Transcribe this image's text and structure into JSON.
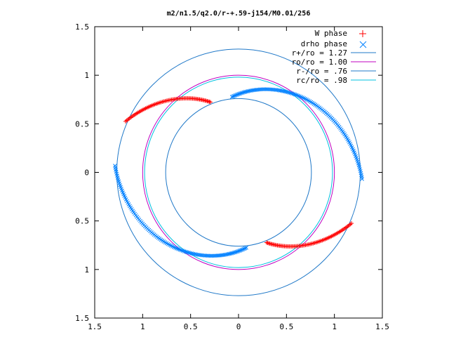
{
  "chart_data": {
    "type": "scatter",
    "title": "m2/n1.5/q2.0/r-+.59-j154/M0.01/256",
    "xlabel": "",
    "ylabel": "",
    "xlim": [
      -1.5,
      1.5
    ],
    "ylim": [
      -1.5,
      1.5
    ],
    "x_ticks": [
      -1.5,
      -1,
      -0.5,
      0,
      0.5,
      1,
      1.5
    ],
    "y_ticks": [
      -1.5,
      -1,
      -0.5,
      0,
      0.5,
      1,
      1.5
    ],
    "x_tick_labels": [
      "1.5",
      "1",
      "0.5",
      "0",
      "0.5",
      "1",
      "1.5"
    ],
    "y_tick_labels": [
      "1.5",
      "1",
      "0.5",
      "0",
      "0.5",
      "1",
      "1.5"
    ],
    "grid": false,
    "legend_position": "top-right",
    "legend": [
      {
        "label": "W phase",
        "marker": "plus",
        "color": "#ff0000"
      },
      {
        "label": "drho phase",
        "marker": "cross",
        "color": "#0080ff"
      },
      {
        "label": "r+/ro = 1.27",
        "marker": "line",
        "color": "#1f78c8"
      },
      {
        "label": "ro/ro = 1.00",
        "marker": "line",
        "color": "#c000c0"
      },
      {
        "label": "r-/ro = .76",
        "marker": "line",
        "color": "#1f78c8"
      },
      {
        "label": "rc/ro = .98",
        "marker": "line",
        "color": "#00c0e0"
      }
    ],
    "circles": [
      {
        "name": "r+/ro = 1.27",
        "r": 1.27,
        "color": "#1f78c8"
      },
      {
        "name": "ro/ro = 1.00",
        "r": 1.0,
        "color": "#c000c0"
      },
      {
        "name": "r-/ro = .76",
        "r": 0.76,
        "color": "#1f78c8"
      },
      {
        "name": "rc/ro = .98",
        "r": 0.98,
        "color": "#00c0e0"
      }
    ],
    "series": [
      {
        "name": "W phase",
        "marker": "plus",
        "color": "#ff0000",
        "arcs": [
          {
            "r_start": 1.29,
            "r_end": 0.78,
            "theta_start_deg": 156,
            "theta_end_deg": 112,
            "n": 70
          },
          {
            "r_start": 0.78,
            "r_end": 1.29,
            "theta_start_deg": 292,
            "theta_end_deg": 336,
            "n": 70
          }
        ]
      },
      {
        "name": "drho phase",
        "marker": "cross",
        "color": "#0080ff",
        "arcs": [
          {
            "r_start": 0.78,
            "r_end": 1.29,
            "theta_start_deg": 95,
            "theta_end_deg": -3,
            "n": 110
          },
          {
            "r_start": 1.29,
            "r_end": 0.78,
            "theta_start_deg": 177,
            "theta_end_deg": 276,
            "n": 110
          }
        ]
      }
    ]
  }
}
